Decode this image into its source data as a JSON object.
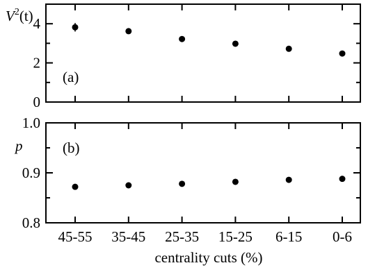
{
  "chart_data": [
    {
      "type": "scatter",
      "panel_tag": "(a)",
      "ylabel_base": "V",
      "ylabel_sup": "2",
      "ylabel_rest": "(t)",
      "xlabel": "",
      "categories": [
        "45-55",
        "35-45",
        "25-35",
        "15-25",
        "6-15",
        "0-6"
      ],
      "values": [
        3.82,
        3.62,
        3.22,
        2.98,
        2.72,
        2.48
      ],
      "errors": [
        0.22,
        0.1,
        0.08,
        0.07,
        0.07,
        0.08
      ],
      "ylim": [
        0,
        5
      ],
      "yticks": [
        0,
        2,
        4
      ],
      "ytick_labels": [
        "0",
        "2",
        "4"
      ],
      "grid": false
    },
    {
      "type": "scatter",
      "panel_tag": "(b)",
      "ylabel": "p",
      "xlabel": "centrality cuts (%)",
      "categories": [
        "45-55",
        "35-45",
        "25-35",
        "15-25",
        "6-15",
        "0-6"
      ],
      "values": [
        0.872,
        0.875,
        0.878,
        0.882,
        0.886,
        0.888
      ],
      "ylim": [
        0.8,
        1.0
      ],
      "yticks": [
        0.8,
        0.9,
        1.0
      ],
      "ytick_labels": [
        "0.8",
        "0.9",
        "1.0"
      ],
      "grid": false
    }
  ]
}
